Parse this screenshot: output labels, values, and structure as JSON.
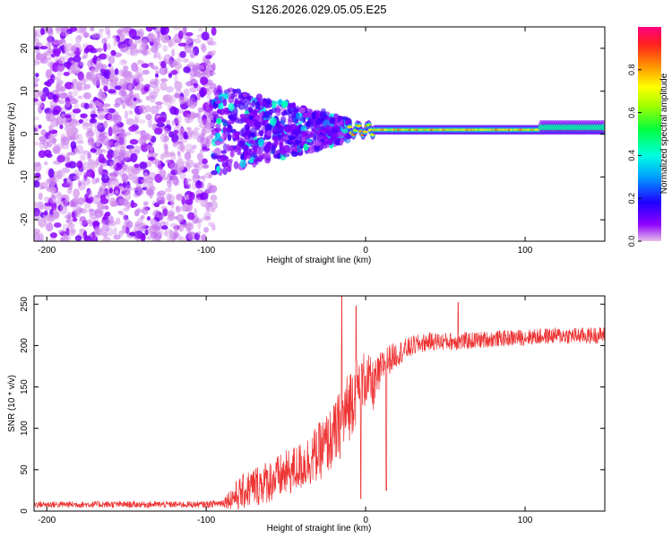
{
  "title": "S126.2026.029.05.05.E25",
  "chart_data": [
    {
      "type": "heatmap",
      "xlabel": "Height of straight line (km)",
      "ylabel": "Frequency (Hz)",
      "xlim": [
        -208,
        150
      ],
      "ylim": [
        -25,
        25
      ],
      "xticks": [
        -200,
        -100,
        0,
        100
      ],
      "yticks": [
        -20,
        -10,
        0,
        10,
        20
      ],
      "colorbar": {
        "label": "Normalized spectral amplitude",
        "range": [
          0,
          1
        ],
        "ticks": [
          "0.0",
          "0.2",
          "0.4",
          "0.6",
          "0.8"
        ],
        "tick_values": [
          0.0,
          0.2,
          0.4,
          0.6,
          0.8
        ],
        "stops": [
          "#e6bfe6",
          "#8e00ff",
          "#2000ff",
          "#00a0ff",
          "#00ffe0",
          "#00ff40",
          "#a0ff00",
          "#ffff00",
          "#ff9000",
          "#ff2020",
          "#ff0080"
        ]
      },
      "features": {
        "noise_region_km": [
          -208,
          -95
        ],
        "transition_region_km": [
          -95,
          -10
        ],
        "signal_band_frequency_hz": 1,
        "signal_band_start_km": -10,
        "signal_peak_region_km": [
          10,
          130
        ]
      }
    },
    {
      "type": "line",
      "xlabel": "Height of straight line (km)",
      "ylabel": "SNR (10 * v/v)",
      "xlim": [
        -208,
        150
      ],
      "ylim": [
        0,
        260
      ],
      "xticks": [
        -200,
        -100,
        0,
        100
      ],
      "yticks": [
        0,
        50,
        100,
        150,
        200,
        250
      ],
      "color": "#ee3333",
      "envelope": {
        "x": [
          -208,
          -100,
          -90,
          -80,
          -70,
          -55,
          -40,
          -30,
          -20,
          -12,
          -8,
          -4,
          0,
          5,
          12,
          20,
          30,
          40,
          60,
          80,
          100,
          120,
          140,
          150
        ],
        "baseline": [
          8,
          8,
          10,
          20,
          30,
          40,
          55,
          70,
          90,
          120,
          140,
          150,
          160,
          150,
          180,
          190,
          200,
          205,
          205,
          208,
          210,
          212,
          212,
          213
        ],
        "spread": [
          8,
          8,
          10,
          40,
          50,
          55,
          60,
          70,
          80,
          90,
          90,
          80,
          70,
          60,
          40,
          30,
          25,
          22,
          22,
          20,
          20,
          20,
          20,
          20
        ]
      },
      "spikes": [
        {
          "x": -15,
          "y": 262
        },
        {
          "x": -6,
          "y": 248
        },
        {
          "x": 58,
          "y": 252
        },
        {
          "x": -3,
          "y": 15
        },
        {
          "x": 13,
          "y": 25
        }
      ]
    }
  ]
}
